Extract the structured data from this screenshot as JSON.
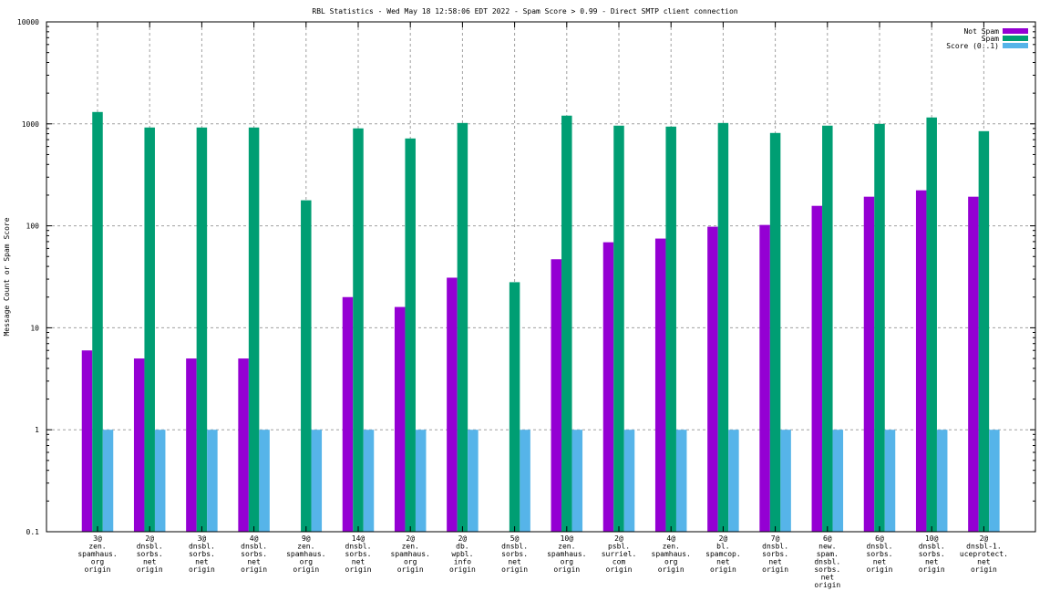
{
  "chart_data": {
    "type": "bar",
    "title": "RBL Statistics - Wed May 18 12:58:06 EDT 2022 - Spam Score > 0.99 - Direct SMTP client connection",
    "xlabel": "",
    "ylabel": "Message Count or Spam Score",
    "yscale": "log",
    "ylim": [
      0.1,
      10000
    ],
    "yticks": [
      {
        "value": 0.1,
        "label": "0.1"
      },
      {
        "value": 1,
        "label": "1"
      },
      {
        "value": 10,
        "label": "10"
      },
      {
        "value": 100,
        "label": "100"
      },
      {
        "value": 1000,
        "label": "1000"
      },
      {
        "value": 10000,
        "label": "10000"
      }
    ],
    "grid": true,
    "legend_position": "top-right",
    "categories": [
      [
        "3@",
        "zen.",
        "spamhaus.",
        "org",
        "origin"
      ],
      [
        "2@",
        "dnsbl.",
        "sorbs.",
        "net",
        "origin"
      ],
      [
        "3@",
        "dnsbl.",
        "sorbs.",
        "net",
        "origin"
      ],
      [
        "4@",
        "dnsbl.",
        "sorbs.",
        "net",
        "origin"
      ],
      [
        "9@",
        "zen.",
        "spamhaus.",
        "org",
        "origin"
      ],
      [
        "14@",
        "dnsbl.",
        "sorbs.",
        "net",
        "origin"
      ],
      [
        "2@",
        "zen.",
        "spamhaus.",
        "org",
        "origin"
      ],
      [
        "2@",
        "db.",
        "wpbl.",
        "info",
        "origin"
      ],
      [
        "5@",
        "dnsbl.",
        "sorbs.",
        "net",
        "origin"
      ],
      [
        "10@",
        "zen.",
        "spamhaus.",
        "org",
        "origin"
      ],
      [
        "2@",
        "psbl.",
        "surriel.",
        "com",
        "origin"
      ],
      [
        "4@",
        "zen.",
        "spamhaus.",
        "org",
        "origin"
      ],
      [
        "2@",
        "bl.",
        "spamcop.",
        "net",
        "origin"
      ],
      [
        "7@",
        "dnsbl.",
        "sorbs.",
        "net",
        "origin"
      ],
      [
        "6@",
        "new.",
        "spam.",
        "dnsbl.",
        "sorbs.",
        "net",
        "origin"
      ],
      [
        "6@",
        "dnsbl.",
        "sorbs.",
        "net",
        "origin"
      ],
      [
        "10@",
        "dnsbl.",
        "sorbs.",
        "net",
        "origin"
      ],
      [
        "2@",
        "dnsbl-1.",
        "uceprotect.",
        "net",
        "origin"
      ]
    ],
    "series": [
      {
        "name": "Not Spam",
        "color": "#9400d3",
        "values": [
          6,
          5,
          5,
          5,
          0,
          20,
          16,
          31,
          0,
          47,
          69,
          75,
          98,
          102,
          157,
          193,
          223,
          193
        ]
      },
      {
        "name": "Spam",
        "color": "#009e73",
        "values": [
          1307,
          921,
          921,
          921,
          178,
          903,
          719,
          1020,
          28,
          1204,
          960,
          940,
          1020,
          814,
          960,
          1000,
          1155,
          848
        ]
      },
      {
        "name": "Score (0..1)",
        "color": "#56b4e9",
        "values": [
          1,
          1,
          1,
          1,
          1,
          1,
          1,
          1,
          1,
          1,
          1,
          1,
          1,
          1,
          1,
          1,
          1,
          1
        ]
      }
    ]
  }
}
